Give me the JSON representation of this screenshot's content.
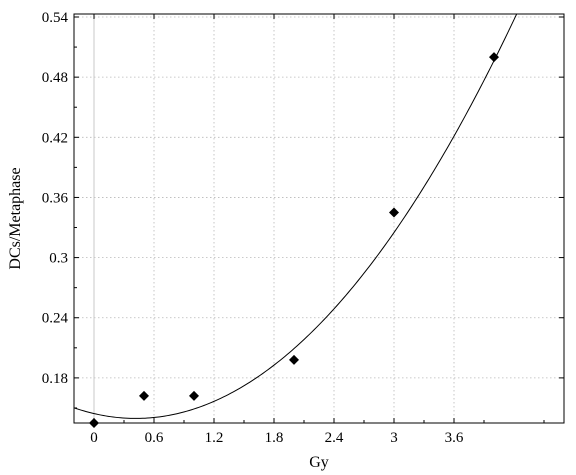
{
  "chart_data": {
    "type": "scatter",
    "title": "",
    "xlabel": "Gy",
    "ylabel": "DCs/Metaphase",
    "xlim": [
      -0.2,
      4.7
    ],
    "ylim": [
      0.135,
      0.543
    ],
    "x_ticks": [
      0,
      0.6,
      1.2,
      1.8,
      2.4,
      3,
      3.6
    ],
    "x_tick_labels": [
      "0",
      "0.6",
      "1.2",
      "1.8",
      "2.4",
      "3",
      "3.6"
    ],
    "y_ticks": [
      0.18,
      0.24,
      0.3,
      0.36,
      0.42,
      0.48,
      0.54
    ],
    "y_tick_labels": [
      "0.18",
      "0.24",
      "0.3",
      "0.36",
      "0.42",
      "0.48",
      "0.54"
    ],
    "grid": true,
    "series": [
      {
        "marker": "diamond",
        "x": [
          0,
          0.5,
          1,
          2,
          3,
          4
        ],
        "y": [
          0.135,
          0.162,
          0.162,
          0.198,
          0.345,
          0.5
        ]
      }
    ],
    "fit": {
      "form": "quadratic",
      "coefficients": [
        0.1444,
        -0.0232,
        0.0278
      ],
      "x_range": [
        -0.2,
        4.7
      ]
    }
  }
}
